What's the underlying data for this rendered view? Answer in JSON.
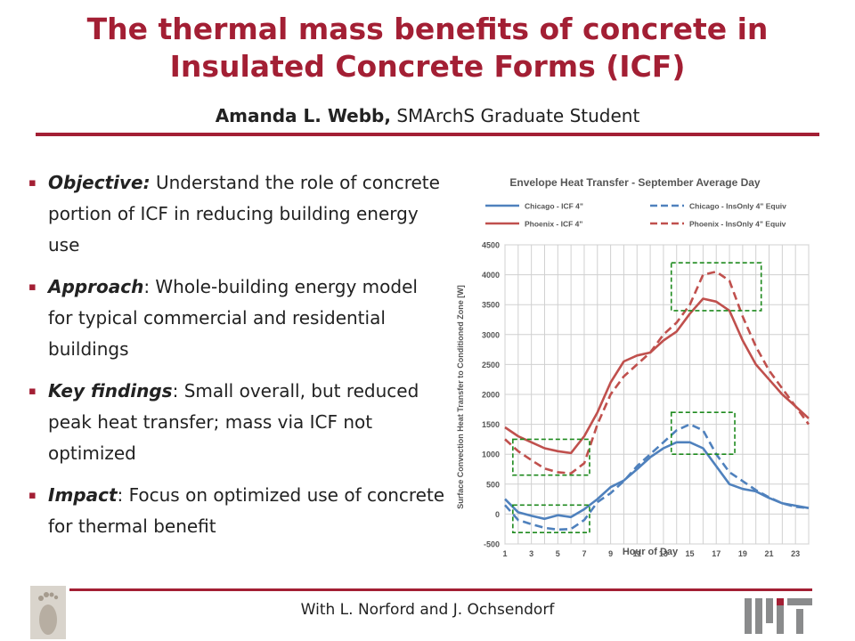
{
  "title": {
    "line1": "The thermal mass benefits of concrete in",
    "line2": "Insulated Concrete Forms (ICF)"
  },
  "author": {
    "name": "Amanda L. Webb,",
    "role": " SMArchS Graduate Student"
  },
  "bullets": [
    {
      "head": "Objective:",
      "text": " Understand the role of concrete portion of ICF in reducing building energy use"
    },
    {
      "head": "Approach",
      "text": ": Whole-building energy model for typical commercial and residential buildings"
    },
    {
      "head": "Key findings",
      "text": ": Small overall, but reduced peak heat transfer; mass via ICF not optimized"
    },
    {
      "head": "Impact",
      "text": ": Focus on optimized use of concrete for thermal benefit"
    }
  ],
  "footer": "With L. Norford and J. Ochsendorf",
  "logo_text": "MIT",
  "chart_data": {
    "type": "line",
    "title": "Envelope Heat Transfer - September Average Day",
    "xlabel": "Hour of Day",
    "ylabel": "Surface Convection Heat Transfer to Conditioned Zone [W]",
    "ylim": [
      -500,
      4500
    ],
    "xlim": [
      1,
      24
    ],
    "yticks": [
      -500,
      0,
      500,
      1000,
      1500,
      2000,
      2500,
      3000,
      3500,
      4000,
      4500
    ],
    "xticks": [
      1,
      3,
      5,
      7,
      9,
      11,
      13,
      15,
      17,
      19,
      21,
      23
    ],
    "grid": true,
    "legend": "top",
    "x": [
      1,
      2,
      3,
      4,
      5,
      6,
      7,
      8,
      9,
      10,
      11,
      12,
      13,
      14,
      15,
      16,
      17,
      18,
      19,
      20,
      21,
      22,
      23,
      24
    ],
    "series": [
      {
        "name": "Chicago - ICF 4\"",
        "color": "#4f81bd",
        "dash": false,
        "values": [
          250,
          30,
          -30,
          -80,
          -20,
          -50,
          80,
          250,
          450,
          560,
          750,
          950,
          1100,
          1200,
          1200,
          1100,
          800,
          500,
          420,
          380,
          270,
          180,
          140,
          100
        ]
      },
      {
        "name": "Chicago - InsOnly 4\" Equiv",
        "color": "#4f81bd",
        "dash": true,
        "values": [
          150,
          -100,
          -170,
          -230,
          -260,
          -250,
          -100,
          200,
          350,
          550,
          800,
          1000,
          1200,
          1400,
          1500,
          1400,
          1000,
          700,
          550,
          400,
          280,
          180,
          120,
          100
        ]
      },
      {
        "name": "Phoenix - ICF 4\"",
        "color": "#c0504d",
        "dash": false,
        "values": [
          1450,
          1300,
          1200,
          1100,
          1050,
          1020,
          1300,
          1700,
          2200,
          2550,
          2650,
          2700,
          2900,
          3050,
          3350,
          3600,
          3550,
          3400,
          2900,
          2500,
          2250,
          2000,
          1800,
          1600
        ]
      },
      {
        "name": "Phoenix - InsOnly 4\" Equiv",
        "color": "#c0504d",
        "dash": true,
        "values": [
          1250,
          1050,
          900,
          760,
          700,
          680,
          850,
          1500,
          2000,
          2300,
          2500,
          2700,
          3000,
          3200,
          3500,
          4000,
          4050,
          3900,
          3300,
          2800,
          2400,
          2100,
          1800,
          1500
        ]
      }
    ],
    "highlight_boxes": [
      {
        "x": [
          2,
          7
        ],
        "y": [
          650,
          1250
        ]
      },
      {
        "x": [
          2,
          7
        ],
        "y": [
          -310,
          150
        ]
      },
      {
        "x": [
          14,
          18
        ],
        "y": [
          1000,
          1700
        ]
      },
      {
        "x": [
          14,
          20
        ],
        "y": [
          3400,
          4200
        ]
      }
    ]
  }
}
